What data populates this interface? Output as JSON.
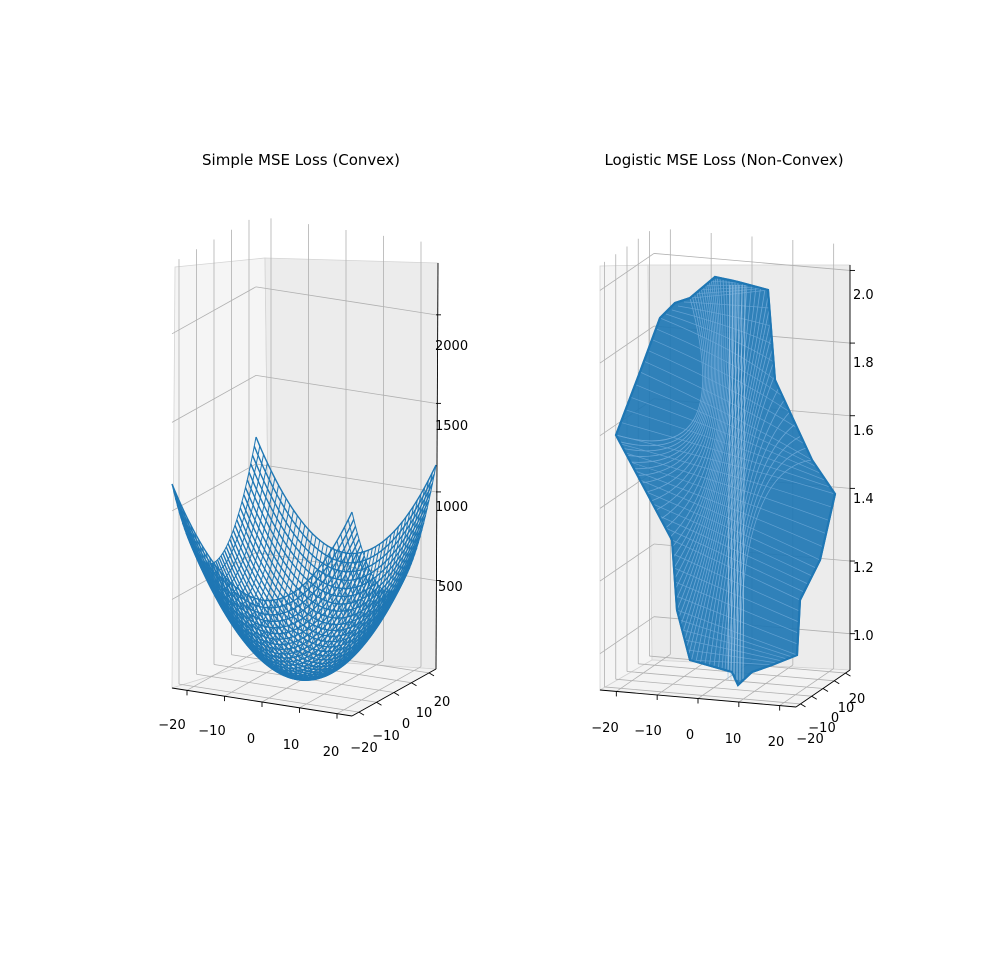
{
  "chart_data": [
    {
      "type": "surface",
      "title": "Simple MSE Loss (Convex)",
      "function": "z = x^2 + y^2",
      "x_ticks": [
        "−20",
        "−10",
        "0",
        "10",
        "20"
      ],
      "y_ticks": [
        "−20",
        "−10",
        "0",
        "10",
        "20"
      ],
      "z_ticks": [
        "500",
        "1000",
        "1500",
        "2000"
      ],
      "xlim": [
        -24,
        24
      ],
      "ylim": [
        -24,
        24
      ],
      "zlim": [
        0,
        2400
      ],
      "surface_color": "#1f77b4",
      "grid": true
    },
    {
      "type": "surface",
      "title": "Logistic MSE Loss (Non-Convex)",
      "function": "non-convex logistic MSE loss surface",
      "x_ticks": [
        "−20",
        "−10",
        "0",
        "10",
        "20"
      ],
      "y_ticks": [
        "−20",
        "−10",
        "0",
        "10",
        "20"
      ],
      "z_ticks": [
        "1.0",
        "1.2",
        "1.4",
        "1.6",
        "1.8",
        "2.0"
      ],
      "xlim": [
        -24,
        24
      ],
      "ylim": [
        -24,
        24
      ],
      "zlim": [
        0.9,
        2.07
      ],
      "surface_color": "#1f77b4",
      "grid": true
    }
  ]
}
